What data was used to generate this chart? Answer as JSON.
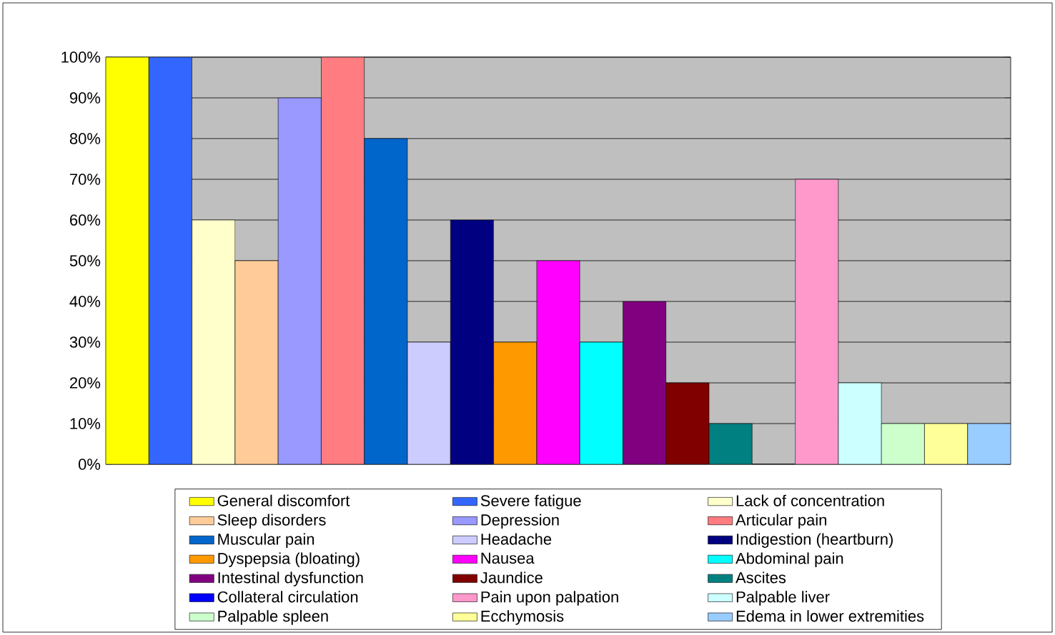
{
  "chart_data": {
    "type": "bar",
    "categories": [
      null
    ],
    "series": [
      {
        "name": "General discomfort",
        "color": "#ffff00",
        "values": [
          100
        ]
      },
      {
        "name": "Severe fatigue",
        "color": "#3366ff",
        "values": [
          100
        ]
      },
      {
        "name": "Lack of concentration",
        "color": "#ffffcc",
        "values": [
          60
        ]
      },
      {
        "name": "Sleep disorders",
        "color": "#ffcc99",
        "values": [
          50
        ]
      },
      {
        "name": "Depression",
        "color": "#9999ff",
        "values": [
          90
        ]
      },
      {
        "name": "Articular pain",
        "color": "#ff7c80",
        "values": [
          100
        ]
      },
      {
        "name": "Muscular pain",
        "color": "#0066cc",
        "values": [
          80
        ]
      },
      {
        "name": "Headache",
        "color": "#ccccff",
        "values": [
          30
        ]
      },
      {
        "name": "Indigestion (heartburn)",
        "color": "#000080",
        "values": [
          60
        ]
      },
      {
        "name": "Dyspepsia (bloating)",
        "color": "#ff9900",
        "values": [
          30
        ]
      },
      {
        "name": "Nausea",
        "color": "#ff00ff",
        "values": [
          50
        ]
      },
      {
        "name": "Abdominal pain",
        "color": "#00ffff",
        "values": [
          30
        ]
      },
      {
        "name": "Intestinal dysfunction",
        "color": "#800080",
        "values": [
          40
        ]
      },
      {
        "name": "Jaundice",
        "color": "#800000",
        "values": [
          20
        ]
      },
      {
        "name": "Ascites",
        "color": "#008080",
        "values": [
          10
        ]
      },
      {
        "name": "Collateral circulation",
        "color": "#0000ff",
        "values": [
          0
        ]
      },
      {
        "name": "Pain upon palpation",
        "color": "#ff99cc",
        "values": [
          70
        ]
      },
      {
        "name": "Palpable liver",
        "color": "#ccffff",
        "values": [
          20
        ]
      },
      {
        "name": "Palpable spleen",
        "color": "#ccffcc",
        "values": [
          10
        ]
      },
      {
        "name": "Ecchymosis",
        "color": "#ffff99",
        "values": [
          10
        ]
      },
      {
        "name": "Edema in lower extremities",
        "color": "#99ccff",
        "values": [
          10
        ]
      }
    ],
    "ylim": [
      0,
      100
    ],
    "yticks": [
      {
        "value": 0,
        "label": "0%"
      },
      {
        "value": 10,
        "label": "10%"
      },
      {
        "value": 20,
        "label": "20%"
      },
      {
        "value": 30,
        "label": "30%"
      },
      {
        "value": 40,
        "label": "40%"
      },
      {
        "value": 50,
        "label": "50%"
      },
      {
        "value": 60,
        "label": "60%"
      },
      {
        "value": 70,
        "label": "70%"
      },
      {
        "value": 80,
        "label": "80%"
      },
      {
        "value": 90,
        "label": "90%"
      },
      {
        "value": 100,
        "label": "100%"
      }
    ],
    "grid": "y",
    "legend": "bottom"
  }
}
